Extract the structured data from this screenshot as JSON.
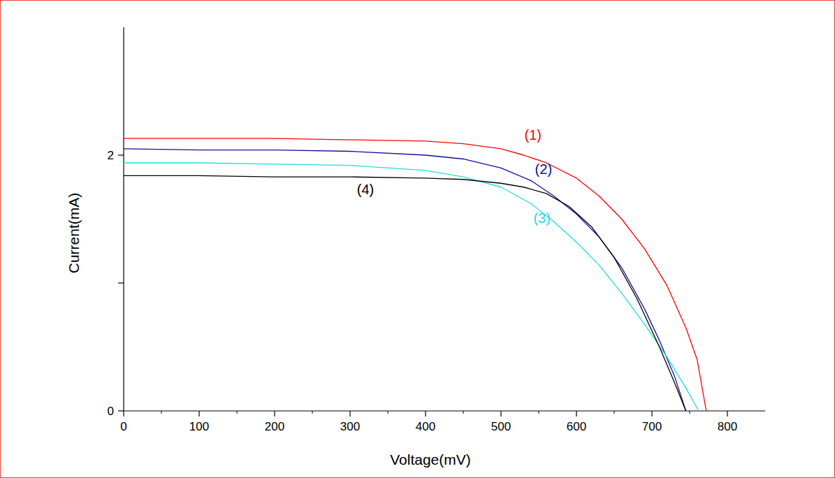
{
  "chart_data": {
    "type": "line",
    "x_label": "Voltage(mV)",
    "y_label": "Current(mA)",
    "xlim": [
      0,
      850
    ],
    "ylim": [
      0,
      3
    ],
    "xticks": [
      0,
      100,
      200,
      300,
      400,
      500,
      600,
      700,
      800
    ],
    "yticks": [
      0,
      2
    ],
    "grid": false,
    "series": [
      {
        "name": "(1)",
        "color": "#ff0000",
        "label_x": 531,
        "label_y": 2.16,
        "x": [
          0,
          100,
          200,
          300,
          400,
          450,
          500,
          530,
          560,
          600,
          630,
          660,
          690,
          720,
          745,
          760,
          772
        ],
        "values": [
          2.13,
          2.13,
          2.13,
          2.12,
          2.11,
          2.09,
          2.05,
          2.0,
          1.94,
          1.82,
          1.68,
          1.5,
          1.27,
          0.98,
          0.65,
          0.4,
          0
        ]
      },
      {
        "name": "(2)",
        "color": "#1010a0",
        "label_x": 545,
        "label_y": 1.89,
        "x": [
          0,
          100,
          200,
          300,
          400,
          450,
          500,
          540,
          570,
          600,
          630,
          660,
          690,
          710,
          730,
          745
        ],
        "values": [
          2.05,
          2.04,
          2.04,
          2.03,
          2.0,
          1.97,
          1.9,
          1.8,
          1.68,
          1.54,
          1.36,
          1.12,
          0.8,
          0.55,
          0.27,
          0
        ]
      },
      {
        "name": "(3)",
        "color": "#22dddd",
        "label_x": 543,
        "label_y": 1.51,
        "x": [
          0,
          100,
          200,
          300,
          400,
          450,
          500,
          540,
          570,
          600,
          630,
          660,
          690,
          720,
          745,
          762
        ],
        "values": [
          1.94,
          1.94,
          1.93,
          1.92,
          1.88,
          1.83,
          1.75,
          1.62,
          1.48,
          1.32,
          1.14,
          0.92,
          0.68,
          0.42,
          0.18,
          0
        ]
      },
      {
        "name": "(4)",
        "color": "#000000",
        "label_x": 309,
        "label_y": 1.73,
        "x": [
          0,
          100,
          200,
          300,
          400,
          450,
          500,
          530,
          560,
          590,
          620,
          650,
          680,
          710,
          730,
          745
        ],
        "values": [
          1.84,
          1.84,
          1.83,
          1.83,
          1.82,
          1.81,
          1.78,
          1.75,
          1.7,
          1.6,
          1.44,
          1.2,
          0.88,
          0.5,
          0.22,
          0
        ]
      }
    ]
  }
}
